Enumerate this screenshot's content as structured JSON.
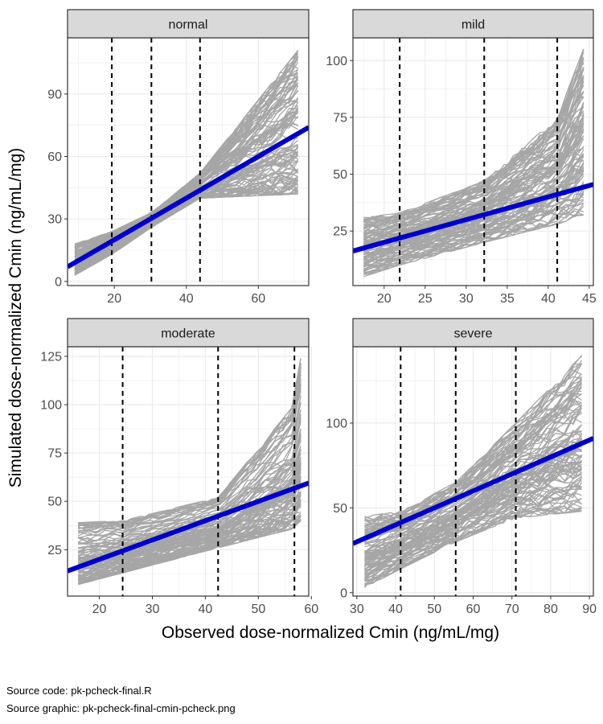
{
  "figure": {
    "xlabel": "Observed dose-normalized Cmin (ng/mL/mg)",
    "ylabel": "Simulated dose-normalized Cmin (ng/mL/mg)",
    "caption_lines": [
      "Source code: pk-pcheck-final.R",
      "Source graphic: pk-pcheck-final-cmin-pcheck.png"
    ]
  },
  "colors": {
    "sim_lines": "#a6a6a6",
    "identity_line": "#0000cc",
    "quantile_lines": "#000000",
    "strip_fill": "#d9d9d9",
    "strip_border": "#333333",
    "grid": "#ebebeb",
    "panel_border": "#333333"
  },
  "chart_data": [
    {
      "type": "line",
      "panel": "normal",
      "xlim": [
        7,
        74
      ],
      "ylim": [
        -2,
        117
      ],
      "x_ticks": [
        20,
        40,
        60
      ],
      "y_ticks": [
        0,
        30,
        60,
        90
      ],
      "quantile_x": [
        19.3,
        30.3,
        43.8
      ],
      "identity_line": {
        "slope": 1,
        "intercept": 0
      },
      "observed_range": [
        9,
        71
      ],
      "sim_lower": {
        "x": [
          9,
          19.3,
          30.3,
          43.8,
          71
        ],
        "y": [
          3,
          13,
          26,
          40,
          42
        ]
      },
      "sim_upper": {
        "x": [
          9,
          19.3,
          30.3,
          43.8,
          71
        ],
        "y": [
          18,
          24,
          33,
          52,
          111
        ]
      },
      "sim_center": {
        "x": [
          9,
          19.3,
          30.3,
          43.8,
          71
        ],
        "y": [
          10,
          19,
          29,
          45,
          65
        ]
      }
    },
    {
      "type": "line",
      "panel": "mild",
      "xlim": [
        16.2,
        45.5
      ],
      "ylim": [
        1,
        110
      ],
      "x_ticks": [
        20,
        25,
        30,
        35,
        40,
        45
      ],
      "y_ticks": [
        25,
        50,
        75,
        100
      ],
      "quantile_x": [
        21.9,
        32.2,
        41.1
      ],
      "identity_line": {
        "slope": 1,
        "intercept": 0
      },
      "observed_range": [
        17.5,
        44.3
      ],
      "sim_lower": {
        "x": [
          17.5,
          21.9,
          32.2,
          41.1,
          44.3
        ],
        "y": [
          5,
          10,
          20,
          28,
          32
        ]
      },
      "sim_upper": {
        "x": [
          17.5,
          21.9,
          32.2,
          41.1,
          44.3
        ],
        "y": [
          31,
          33,
          47,
          75,
          105
        ]
      },
      "sim_center": {
        "x": [
          17.5,
          21.9,
          32.2,
          41.1,
          44.3
        ],
        "y": [
          18,
          22,
          33,
          42,
          50
        ]
      }
    },
    {
      "type": "line",
      "panel": "moderate",
      "xlim": [
        14,
        59.5
      ],
      "ylim": [
        1,
        130
      ],
      "x_ticks": [
        20,
        30,
        40,
        50,
        60
      ],
      "y_ticks": [
        25,
        50,
        75,
        100,
        125
      ],
      "quantile_x": [
        24.4,
        42.4,
        56.8
      ],
      "identity_line": {
        "slope": 1,
        "intercept": 0
      },
      "observed_range": [
        16,
        58
      ],
      "sim_lower": {
        "x": [
          16,
          24.4,
          42.4,
          56.8,
          58
        ],
        "y": [
          7,
          13,
          26,
          36,
          40
        ]
      },
      "sim_upper": {
        "x": [
          16,
          24.4,
          42.4,
          56.8,
          58
        ],
        "y": [
          39,
          40,
          52,
          100,
          124
        ]
      },
      "sim_center": {
        "x": [
          16,
          24.4,
          42.4,
          56.8,
          58
        ],
        "y": [
          18,
          24,
          40,
          56,
          62
        ]
      }
    },
    {
      "type": "line",
      "panel": "severe",
      "xlim": [
        29,
        91
      ],
      "ylim": [
        -2,
        145
      ],
      "x_ticks": [
        30,
        40,
        50,
        60,
        70,
        80,
        90
      ],
      "y_ticks": [
        0,
        50,
        100
      ],
      "quantile_x": [
        41.3,
        55.5,
        71
      ],
      "identity_line": {
        "slope": 1,
        "intercept": 0
      },
      "observed_range": [
        32,
        88
      ],
      "sim_lower": {
        "x": [
          32,
          41.3,
          55.5,
          71,
          88
        ],
        "y": [
          3,
          14,
          30,
          44,
          48
        ]
      },
      "sim_upper": {
        "x": [
          32,
          41.3,
          55.5,
          71,
          88
        ],
        "y": [
          45,
          48,
          65,
          100,
          140
        ]
      },
      "sim_center": {
        "x": [
          32,
          41.3,
          55.5,
          71,
          88
        ],
        "y": [
          28,
          36,
          50,
          70,
          88
        ]
      }
    }
  ]
}
